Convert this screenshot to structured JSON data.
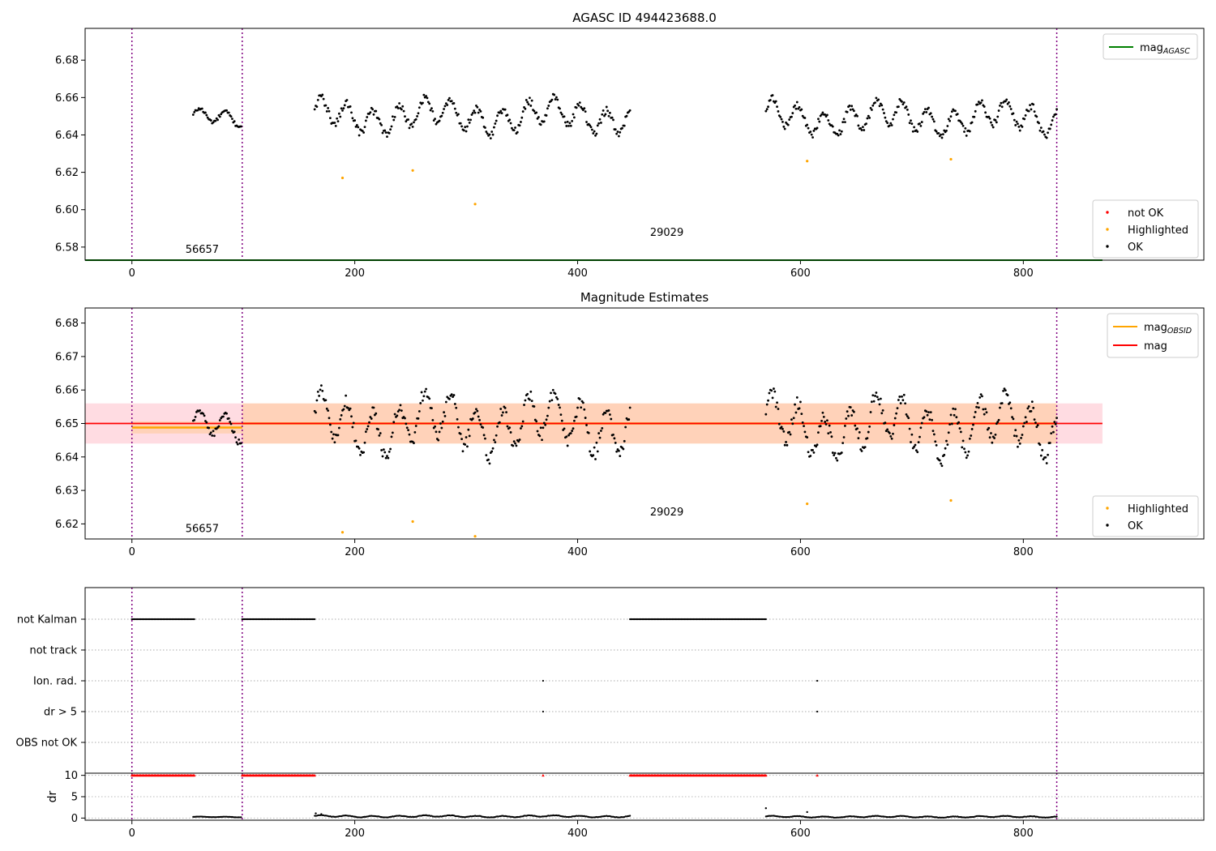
{
  "chart_data": [
    {
      "type": "scatter",
      "title": "AGASC ID 494423688.0",
      "xlim": [
        -42,
        962
      ],
      "ylim": [
        6.573,
        6.697
      ],
      "yticks": [
        6.58,
        6.6,
        6.62,
        6.64,
        6.66,
        6.68
      ],
      "ytick_labels": [
        "6.58",
        "6.60",
        "6.62",
        "6.64",
        "6.66",
        "6.68"
      ],
      "xticks": [
        0,
        200,
        400,
        600,
        800
      ],
      "xtick_labels": [
        "0",
        "200",
        "400",
        "600",
        "800"
      ],
      "vlines_x": [
        0,
        99,
        830
      ],
      "obsid_labels": [
        {
          "text": "56657",
          "x": 48,
          "y": 6.577
        },
        {
          "text": "29029",
          "x": 465,
          "y": 6.586
        }
      ],
      "line_legend": [
        {
          "name": "mag",
          "sub": "AGASC",
          "color": "#008000"
        }
      ],
      "marker_legend": [
        {
          "name": "not OK",
          "color": "#ff0000"
        },
        {
          "name": "Highlighted",
          "color": "#ffa500"
        },
        {
          "name": "OK",
          "color": "#000000"
        }
      ],
      "legend_placement": [
        "upper-right",
        "lower-right"
      ],
      "mag_agasc_line": {
        "y": 6.573,
        "x_range": [
          -42,
          871
        ],
        "color": "#008000"
      },
      "series": [
        {
          "name": "OK",
          "color": "#000000",
          "segments": [
            {
              "x_range": [
                55,
                98
              ],
              "center": 6.649,
              "amp": 0.003
            },
            {
              "x_range": [
                164,
                447
              ],
              "center": 6.65,
              "amp": 0.006
            },
            {
              "x_range": [
                569,
                830
              ],
              "center": 6.649,
              "amp": 0.006
            }
          ]
        },
        {
          "name": "Highlighted",
          "color": "#ffa500",
          "x": [
            189,
            252,
            308,
            606,
            735
          ],
          "y": [
            6.617,
            6.621,
            6.603,
            6.626,
            6.627
          ]
        }
      ]
    },
    {
      "type": "scatter",
      "title": "Magnitude Estimates",
      "xlim": [
        -42,
        962
      ],
      "ylim": [
        6.6155,
        6.6845
      ],
      "yticks": [
        6.62,
        6.63,
        6.64,
        6.65,
        6.66,
        6.67,
        6.68
      ],
      "ytick_labels": [
        "6.62",
        "6.63",
        "6.64",
        "6.65",
        "6.66",
        "6.67",
        "6.68"
      ],
      "xticks": [
        0,
        200,
        400,
        600,
        800
      ],
      "xtick_labels": [
        "0",
        "200",
        "400",
        "600",
        "800"
      ],
      "vlines_x": [
        0,
        99,
        830
      ],
      "obsid_labels": [
        {
          "text": "56657",
          "x": 48,
          "y": 6.6175
        },
        {
          "text": "29029",
          "x": 465,
          "y": 6.6225
        }
      ],
      "line_legend": [
        {
          "name": "mag",
          "sub": "OBSID",
          "color": "#ffa500"
        },
        {
          "name": "mag",
          "sub": "",
          "color": "#ff0000"
        }
      ],
      "marker_legend": [
        {
          "name": "Highlighted",
          "color": "#ffa500"
        },
        {
          "name": "OK",
          "color": "#000000"
        }
      ],
      "legend_placement": [
        "upper-right",
        "lower-right"
      ],
      "mag_line": {
        "y": 6.65,
        "band": [
          6.644,
          6.656
        ],
        "x_range": [
          -42,
          871
        ],
        "color": "#ff0000",
        "band_color": "#ffc0cb"
      },
      "obsid_mag": [
        {
          "x_range": [
            0,
            99
          ],
          "y": 6.6488,
          "band": [
            6.647,
            6.6506
          ]
        },
        {
          "x_range": [
            99,
            830
          ],
          "y": 6.65,
          "band": [
            6.644,
            6.656
          ]
        }
      ],
      "series": [
        {
          "name": "OK",
          "color": "#000000",
          "segments": [
            {
              "x_range": [
                55,
                98
              ],
              "center": 6.649,
              "amp": 0.003
            },
            {
              "x_range": [
                164,
                447
              ],
              "center": 6.65,
              "amp": 0.006
            },
            {
              "x_range": [
                569,
                830
              ],
              "center": 6.649,
              "amp": 0.006
            }
          ]
        },
        {
          "name": "Highlighted",
          "color": "#ffa500",
          "x": [
            189,
            252,
            308,
            606,
            735
          ],
          "y": [
            6.6175,
            6.6207,
            6.6163,
            6.626,
            6.627
          ]
        }
      ]
    },
    {
      "type": "scatter",
      "title": "",
      "xlim": [
        -42,
        962
      ],
      "xticks": [
        0,
        200,
        400,
        600,
        800
      ],
      "xtick_labels": [
        "0",
        "200",
        "400",
        "600",
        "800"
      ],
      "vlines_x": [
        0,
        99,
        830
      ],
      "flag_labels": [
        "not Kalman",
        "not track",
        "Ion. rad.",
        "dr > 5",
        "OBS not OK"
      ],
      "flag_points": {
        "not Kalman": [
          [
            0,
            56
          ],
          [
            99,
            164
          ],
          [
            447,
            569
          ]
        ],
        "not track": [],
        "Ion. rad.": [
          [
            369,
            369
          ],
          [
            615,
            615
          ]
        ],
        "dr > 5": [
          [
            369,
            369
          ],
          [
            615,
            615
          ]
        ],
        "OBS not OK": []
      }
    },
    {
      "type": "scatter",
      "ylabel": "dr",
      "xlim": [
        -42,
        962
      ],
      "ylim": [
        -0.5,
        10.5
      ],
      "yticks": [
        0,
        5,
        10
      ],
      "ytick_labels": [
        "0",
        "5",
        "10"
      ],
      "vlines_x": [
        0,
        99,
        830
      ],
      "clipped_at_10": [
        [
          0,
          56
        ],
        [
          99,
          164
        ],
        [
          369,
          369
        ],
        [
          447,
          569
        ],
        [
          615,
          615
        ]
      ],
      "series": [
        {
          "name": "dr",
          "color": "#000000",
          "segments": [
            {
              "x_range": [
                55,
                98
              ],
              "center": 0.25,
              "amp": 0.1
            },
            {
              "x_range": [
                164,
                447
              ],
              "center": 0.4,
              "amp": 0.3
            },
            {
              "x_range": [
                569,
                830
              ],
              "center": 0.3,
              "amp": 0.25
            }
          ]
        },
        {
          "name": "dr outliers",
          "color": "#000000",
          "x": [
            569,
            606,
            165,
            170
          ],
          "y": [
            2.3,
            1.4,
            1.1,
            0.9
          ]
        }
      ]
    }
  ]
}
